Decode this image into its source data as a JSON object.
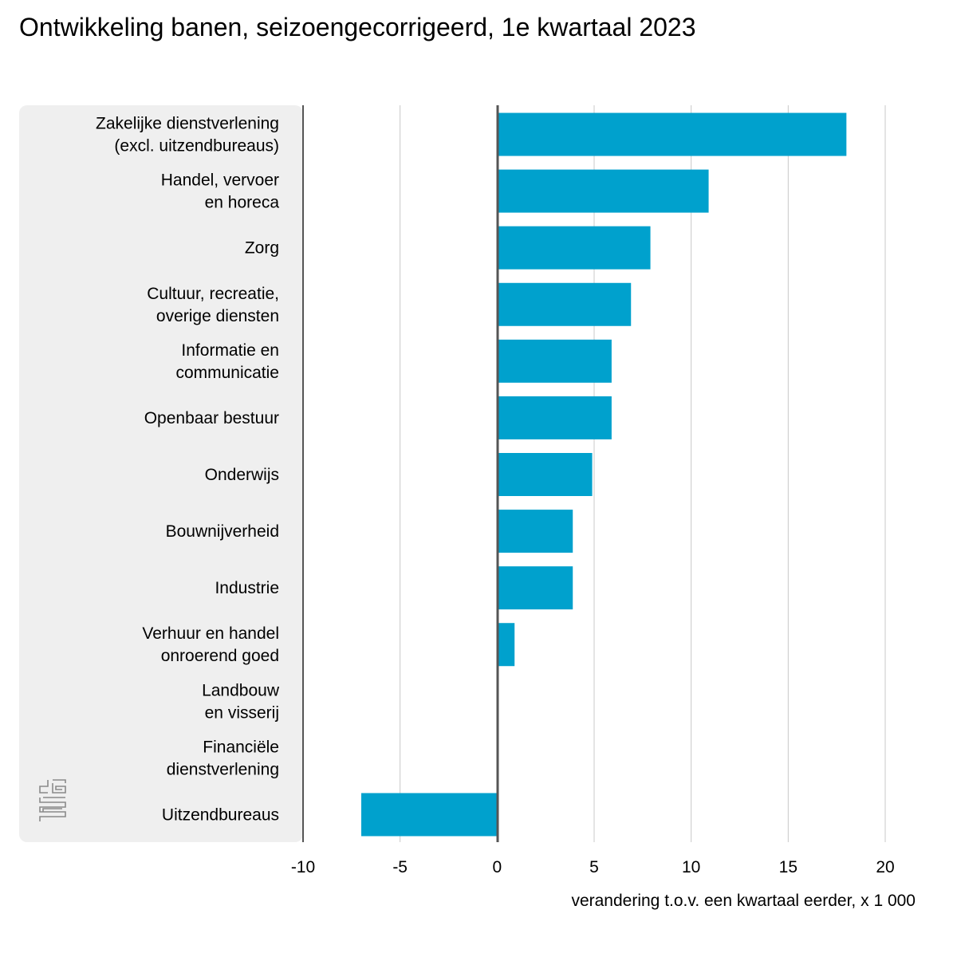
{
  "chart_data": {
    "type": "bar",
    "orientation": "horizontal",
    "title": "Ontwikkeling banen, seizoengecorrigeerd, 1e kwartaal 2023",
    "xlabel": "verandering t.o.v. een kwartaal eerder, x 1 000",
    "ylabel": "",
    "categories": [
      [
        "Zakelijke dienstverlening",
        "(excl. uitzendbureaus)"
      ],
      [
        "Handel, vervoer",
        "en horeca"
      ],
      [
        "Zorg"
      ],
      [
        "Cultuur, recreatie,",
        "overige diensten"
      ],
      [
        "Informatie en",
        "communicatie"
      ],
      [
        "Openbaar bestuur"
      ],
      [
        "Onderwijs"
      ],
      [
        "Bouwnijverheid"
      ],
      [
        "Industrie"
      ],
      [
        "Verhuur en handel",
        "onroerend goed"
      ],
      [
        "Landbouw",
        "en visserij"
      ],
      [
        "Financiële",
        "dienstverlening"
      ],
      [
        "Uitzendbureaus"
      ]
    ],
    "values": [
      18,
      10.9,
      7.9,
      6.9,
      5.9,
      5.9,
      4.9,
      3.9,
      3.9,
      0.9,
      0,
      0,
      -7
    ],
    "xlim": [
      -10,
      20
    ],
    "xticks": [
      "-10",
      "-5",
      "0",
      "5",
      "10",
      "15",
      "20"
    ],
    "grid": true,
    "bar_color": "#00a1cd",
    "label_panel_color": "#efefef",
    "gridline_color": "#c8c8c8",
    "axis_color": "#555555"
  },
  "logo": {
    "text": "cbs"
  }
}
